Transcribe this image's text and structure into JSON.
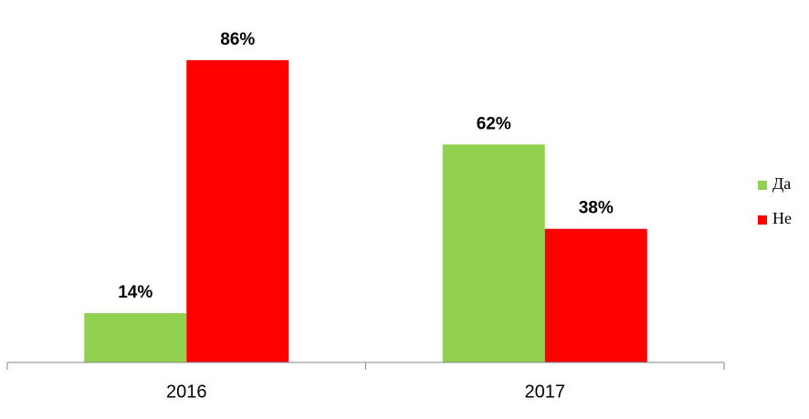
{
  "chart_data": {
    "type": "bar",
    "categories": [
      "2016",
      "2017"
    ],
    "series": [
      {
        "name": "Да",
        "color": "#92d050",
        "values": [
          14,
          62
        ],
        "value_labels": [
          "14%",
          "62%"
        ]
      },
      {
        "name": "Не",
        "color": "#ff0000",
        "values": [
          86,
          38
        ],
        "value_labels": [
          "86%",
          "38%"
        ]
      }
    ],
    "ylim": [
      0,
      100
    ],
    "legend": "right"
  }
}
